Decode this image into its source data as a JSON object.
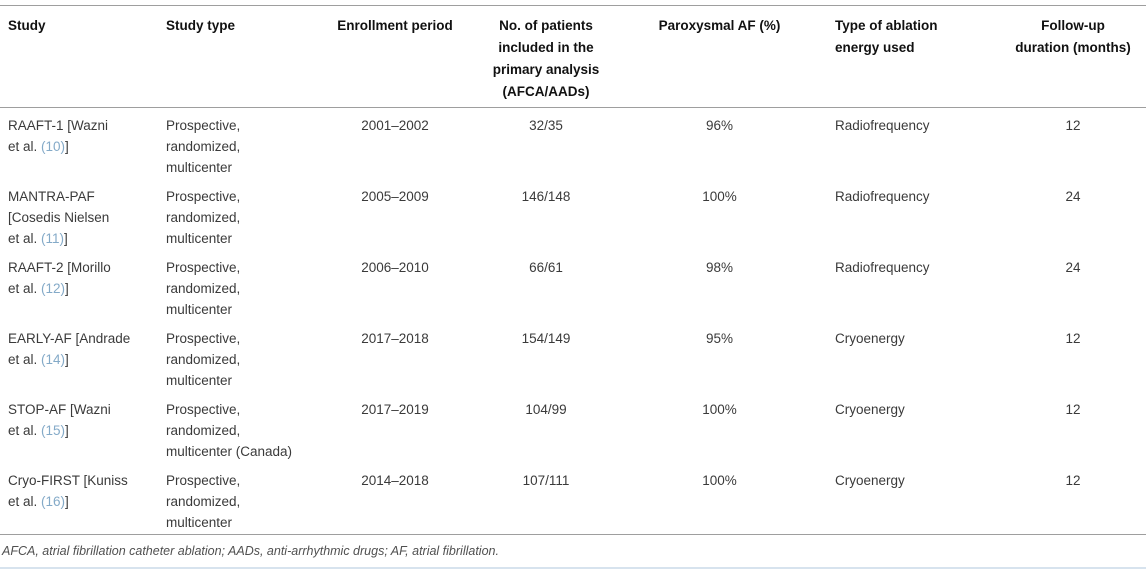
{
  "table": {
    "headers": {
      "study": "Study",
      "study_type": "Study type",
      "enrollment": "Enrollment period",
      "patients": [
        "No. of patients",
        "included in the",
        "primary analysis",
        "(AFCA/AADs)"
      ],
      "paroxysmal": "Paroxysmal AF (%)",
      "energy": [
        "Type of ablation",
        "energy used"
      ],
      "followup": [
        "Follow-up",
        "duration (months)"
      ]
    },
    "rows": [
      {
        "study_lines": [
          "RAAFT-1 [Wazni"
        ],
        "study_cite_pre": "et al. ",
        "citation": "(10)",
        "study_cite_post": "]",
        "study_type_lines": [
          "Prospective,",
          "randomized,",
          "multicenter"
        ],
        "enrollment": "2001–2002",
        "patients": "32/35",
        "paroxysmal": "96%",
        "energy": "Radiofrequency",
        "followup": "12"
      },
      {
        "study_lines": [
          "MANTRA-PAF",
          "[Cosedis Nielsen"
        ],
        "study_cite_pre": "et al. ",
        "citation": "(11)",
        "study_cite_post": "]",
        "study_type_lines": [
          "Prospective,",
          "randomized,",
          "multicenter"
        ],
        "enrollment": "2005–2009",
        "patients": "146/148",
        "paroxysmal": "100%",
        "energy": "Radiofrequency",
        "followup": "24"
      },
      {
        "study_lines": [
          "RAAFT-2 [Morillo"
        ],
        "study_cite_pre": "et al. ",
        "citation": "(12)",
        "study_cite_post": "]",
        "study_type_lines": [
          "Prospective,",
          "randomized,",
          "multicenter"
        ],
        "enrollment": "2006–2010",
        "patients": "66/61",
        "paroxysmal": "98%",
        "energy": "Radiofrequency",
        "followup": "24"
      },
      {
        "study_lines": [
          "EARLY-AF [Andrade"
        ],
        "study_cite_pre": "et al. ",
        "citation": "(14)",
        "study_cite_post": "]",
        "study_type_lines": [
          "Prospective,",
          "randomized,",
          "multicenter"
        ],
        "enrollment": "2017–2018",
        "patients": "154/149",
        "paroxysmal": "95%",
        "energy": "Cryoenergy",
        "followup": "12"
      },
      {
        "study_lines": [
          "STOP-AF [Wazni"
        ],
        "study_cite_pre": "et al. ",
        "citation": "(15)",
        "study_cite_post": "]",
        "study_type_lines": [
          "Prospective,",
          "randomized,",
          "multicenter (Canada)"
        ],
        "enrollment": "2017–2019",
        "patients": "104/99",
        "paroxysmal": "100%",
        "energy": "Cryoenergy",
        "followup": "12"
      },
      {
        "study_lines": [
          "Cryo-FIRST [Kuniss"
        ],
        "study_cite_pre": "et al. ",
        "citation": "(16)",
        "study_cite_post": "]",
        "study_type_lines": [
          "Prospective,",
          "randomized,",
          "multicenter"
        ],
        "enrollment": "2014–2018",
        "patients": "107/111",
        "paroxysmal": "100%",
        "energy": "Cryoenergy",
        "followup": "12"
      }
    ],
    "footnote": "AFCA, atrial fibrillation catheter ablation; AADs, anti-arrhythmic drugs; AF, atrial fibrillation."
  },
  "colors": {
    "citation_link": "#84aac8",
    "rule": "#9e9e9e",
    "bottom_divider": "#d7e3ee"
  }
}
